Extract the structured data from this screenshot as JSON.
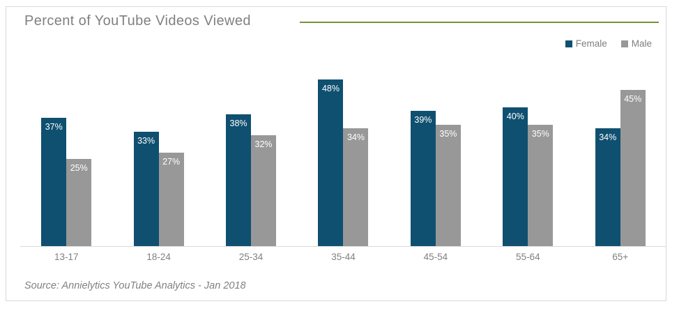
{
  "card": {
    "title": "Percent of YouTube Videos Viewed",
    "source": "Source: Annielytics YouTube Analytics - Jan 2018",
    "accent_color": "#76933C",
    "border_color": "#D9D9D9"
  },
  "legend": {
    "position": "top-right",
    "items": [
      {
        "label": "Female",
        "color": "#0F5070"
      },
      {
        "label": "Male",
        "color": "#989898"
      }
    ]
  },
  "chart_data": {
    "type": "bar",
    "title": "Percent of YouTube Videos Viewed",
    "categories": [
      "13-17",
      "18-24",
      "25-34",
      "35-44",
      "45-54",
      "55-64",
      "65+"
    ],
    "series": [
      {
        "name": "Female",
        "color": "#0F5070",
        "values": [
          37,
          33,
          38,
          48,
          39,
          40,
          34
        ]
      },
      {
        "name": "Male",
        "color": "#989898",
        "values": [
          25,
          27,
          32,
          34,
          35,
          35,
          45
        ]
      }
    ],
    "value_suffix": "%",
    "xlabel": "",
    "ylabel": "",
    "ylim": [
      0,
      50
    ],
    "grid": false,
    "data_labels": "inside-top-white",
    "legend_position": "top-right"
  }
}
